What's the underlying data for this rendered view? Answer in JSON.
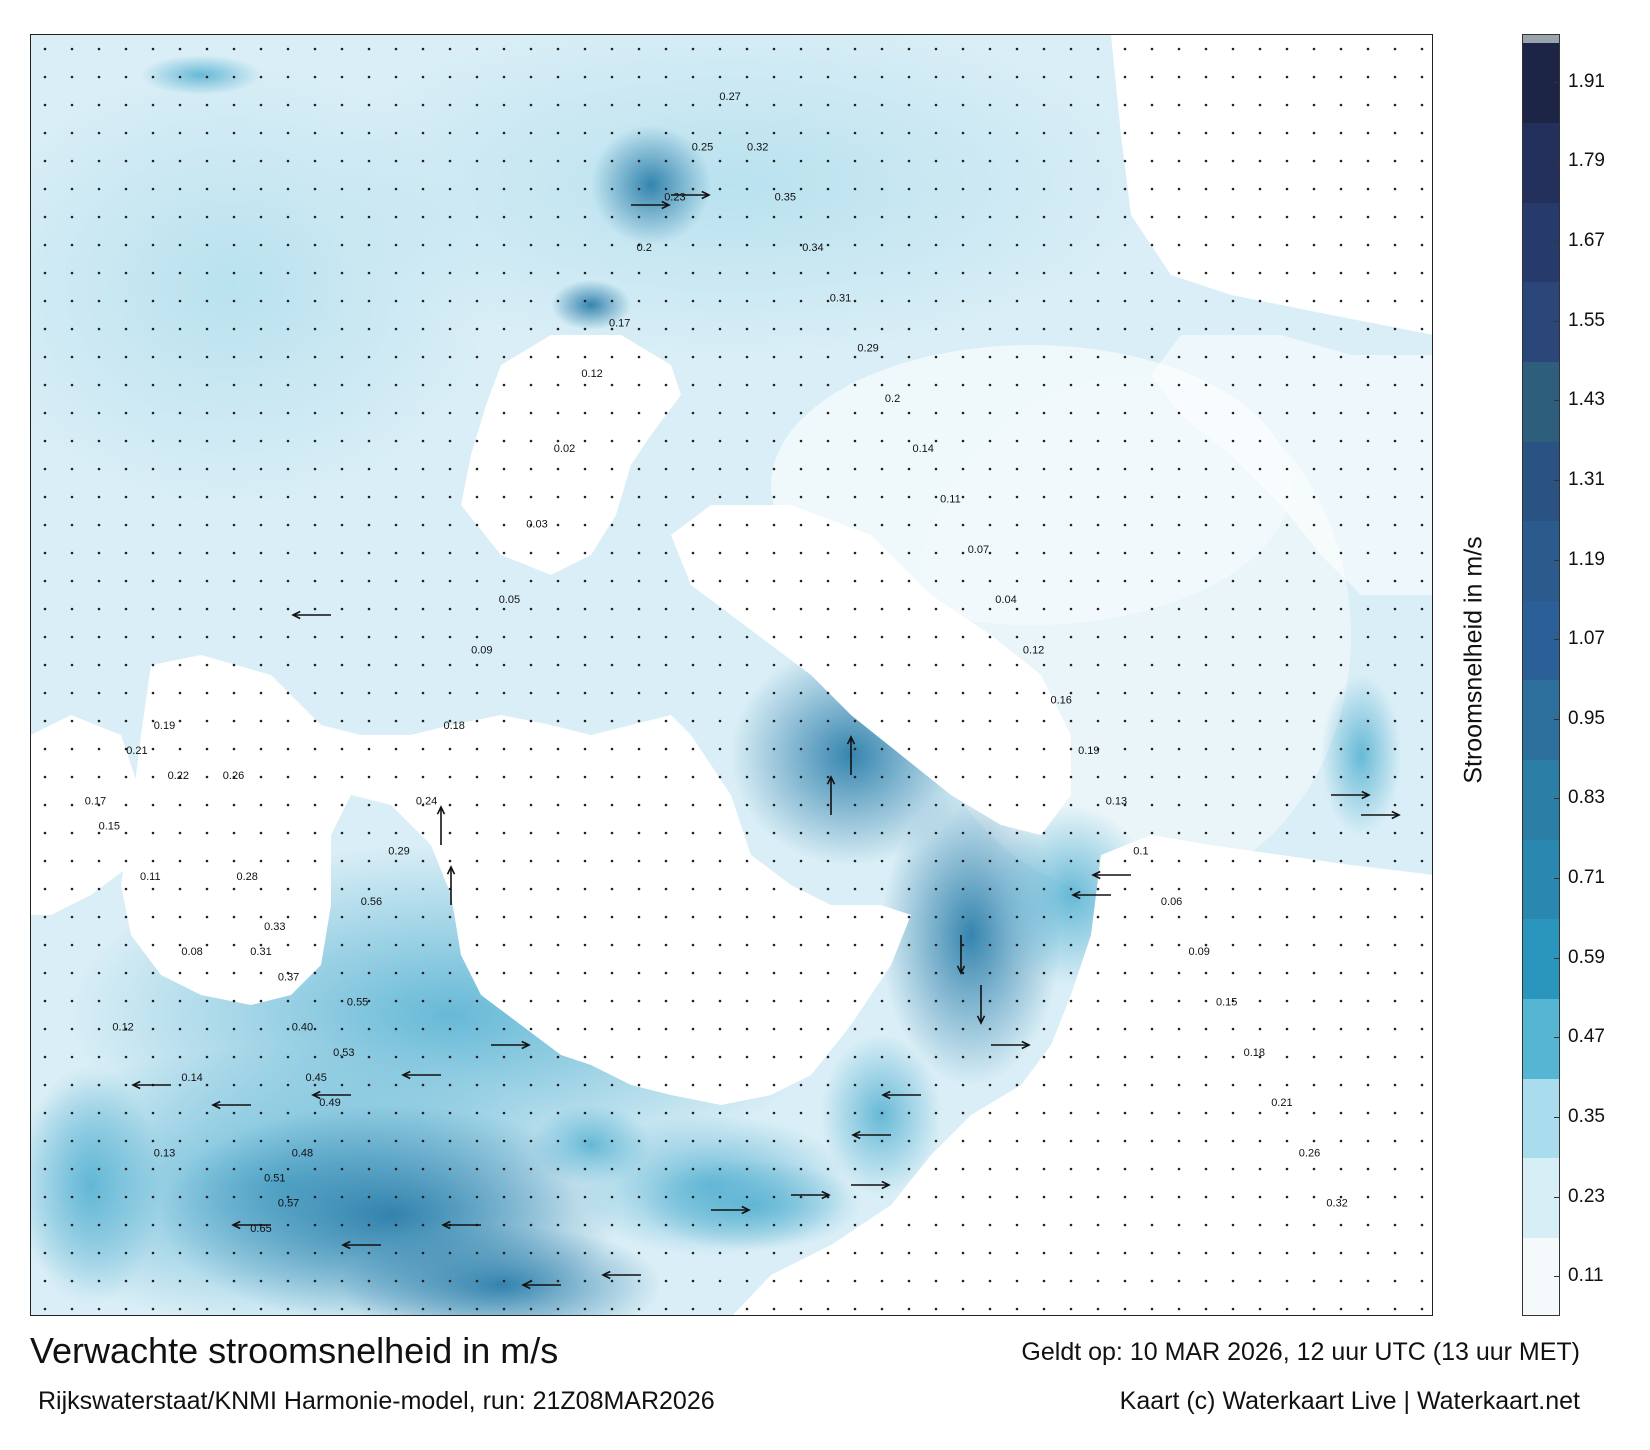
{
  "header": {
    "title": "Verwachte stroomsnelheid in m/s",
    "subtitle": "Rijkswaterstaat/KNMI Harmonie-model, run: 21Z08MAR2026",
    "valid_time": "Geldt op: 10 MAR 2026, 12 uur UTC (13 uur MET)",
    "credit": "Kaart (c) Waterkaart Live | Waterkaart.net"
  },
  "colorbar": {
    "label": "Stroomsnelheid in m/s",
    "ticks": [
      "0.11",
      "0.23",
      "0.35",
      "0.47",
      "0.59",
      "0.71",
      "0.83",
      "0.95",
      "1.07",
      "1.19",
      "1.31",
      "1.43",
      "1.55",
      "1.67",
      "1.79",
      "1.91"
    ],
    "colors": [
      "#f4fafc",
      "#d6eef6",
      "#a9dcec",
      "#56b5d3",
      "#2b96bd",
      "#2a88b0",
      "#2b7fa6",
      "#2c6f9d",
      "#2a5f97",
      "#2b5a8d",
      "#2a5384",
      "#2d5f7c",
      "#2b4679",
      "#263b6c",
      "#23305c",
      "#1d2547"
    ],
    "top_color": "#9aa4ac"
  },
  "map": {
    "colors": {
      "land": "#ffffff",
      "sea": "#d4ecf5",
      "channel": "#7cc4de",
      "deep": "#2f8fb8",
      "strong": "#2a6f9e"
    },
    "labels": [
      {
        "t": "0.13",
        "x": 3.6,
        "y": 25.3
      },
      {
        "t": "0.14",
        "x": 3.8,
        "y": 25.6
      },
      {
        "t": "0.12",
        "x": 3.3,
        "y": 25.8
      },
      {
        "t": "0.08",
        "x": 3.8,
        "y": 26.1
      },
      {
        "t": "0.11",
        "x": 3.5,
        "y": 26.4
      },
      {
        "t": "0.15",
        "x": 3.2,
        "y": 26.6
      },
      {
        "t": "0.17",
        "x": 3.1,
        "y": 26.7
      },
      {
        "t": "0.19",
        "x": 3.6,
        "y": 27.0
      },
      {
        "t": "0.21",
        "x": 3.4,
        "y": 26.9
      },
      {
        "t": "0.22",
        "x": 3.7,
        "y": 26.8
      },
      {
        "t": "0.26",
        "x": 4.1,
        "y": 26.8
      },
      {
        "t": "0.28",
        "x": 4.2,
        "y": 26.4
      },
      {
        "t": "0.31",
        "x": 4.3,
        "y": 26.1
      },
      {
        "t": "0.33",
        "x": 4.4,
        "y": 26.2
      },
      {
        "t": "0.37",
        "x": 4.5,
        "y": 26.0
      },
      {
        "t": "0.40",
        "x": 4.6,
        "y": 25.8
      },
      {
        "t": "0.45",
        "x": 4.7,
        "y": 25.6
      },
      {
        "t": "0.49",
        "x": 4.8,
        "y": 25.5
      },
      {
        "t": "0.53",
        "x": 4.9,
        "y": 25.7
      },
      {
        "t": "0.55",
        "x": 5.0,
        "y": 25.9
      },
      {
        "t": "0.48",
        "x": 4.6,
        "y": 25.3
      },
      {
        "t": "0.51",
        "x": 4.4,
        "y": 25.2
      },
      {
        "t": "0.57",
        "x": 4.5,
        "y": 25.1
      },
      {
        "t": "0.65",
        "x": 4.3,
        "y": 25.0
      },
      {
        "t": "0.56",
        "x": 5.1,
        "y": 26.3
      },
      {
        "t": "0.29",
        "x": 5.3,
        "y": 26.5
      },
      {
        "t": "0.24",
        "x": 5.5,
        "y": 26.7
      },
      {
        "t": "0.18",
        "x": 5.7,
        "y": 27.0
      },
      {
        "t": "0.09",
        "x": 5.9,
        "y": 27.3
      },
      {
        "t": "0.05",
        "x": 6.1,
        "y": 27.5
      },
      {
        "t": "0.03",
        "x": 6.3,
        "y": 27.8
      },
      {
        "t": "0.02",
        "x": 6.5,
        "y": 28.1
      },
      {
        "t": "0.12",
        "x": 6.7,
        "y": 28.4
      },
      {
        "t": "0.17",
        "x": 6.9,
        "y": 28.6
      },
      {
        "t": "0.2",
        "x": 7.1,
        "y": 28.9
      },
      {
        "t": "0.23",
        "x": 7.3,
        "y": 29.1
      },
      {
        "t": "0.25",
        "x": 7.5,
        "y": 29.3
      },
      {
        "t": "0.27",
        "x": 7.7,
        "y": 29.5
      },
      {
        "t": "0.32",
        "x": 7.9,
        "y": 29.3
      },
      {
        "t": "0.35",
        "x": 8.1,
        "y": 29.1
      },
      {
        "t": "0.34",
        "x": 8.3,
        "y": 28.9
      },
      {
        "t": "0.31",
        "x": 8.5,
        "y": 28.7
      },
      {
        "t": "0.29",
        "x": 8.7,
        "y": 28.5
      },
      {
        "t": "0.2",
        "x": 8.9,
        "y": 28.3
      },
      {
        "t": "0.14",
        "x": 9.1,
        "y": 28.1
      },
      {
        "t": "0.11",
        "x": 9.3,
        "y": 27.9
      },
      {
        "t": "0.07",
        "x": 9.5,
        "y": 27.7
      },
      {
        "t": "0.04",
        "x": 9.7,
        "y": 27.5
      },
      {
        "t": "0.12",
        "x": 9.9,
        "y": 27.3
      },
      {
        "t": "0.16",
        "x": 10.1,
        "y": 27.1
      },
      {
        "t": "0.19",
        "x": 10.3,
        "y": 26.9
      },
      {
        "t": "0.13",
        "x": 10.5,
        "y": 26.7
      },
      {
        "t": "0.1",
        "x": 10.7,
        "y": 26.5
      },
      {
        "t": "0.06",
        "x": 10.9,
        "y": 26.3
      },
      {
        "t": "0.09",
        "x": 11.1,
        "y": 26.1
      },
      {
        "t": "0.15",
        "x": 11.3,
        "y": 25.9
      },
      {
        "t": "0.18",
        "x": 11.5,
        "y": 25.7
      },
      {
        "t": "0.21",
        "x": 11.7,
        "y": 25.5
      },
      {
        "t": "0.26",
        "x": 11.9,
        "y": 25.3
      },
      {
        "t": "0.32",
        "x": 12.1,
        "y": 25.1
      }
    ]
  }
}
